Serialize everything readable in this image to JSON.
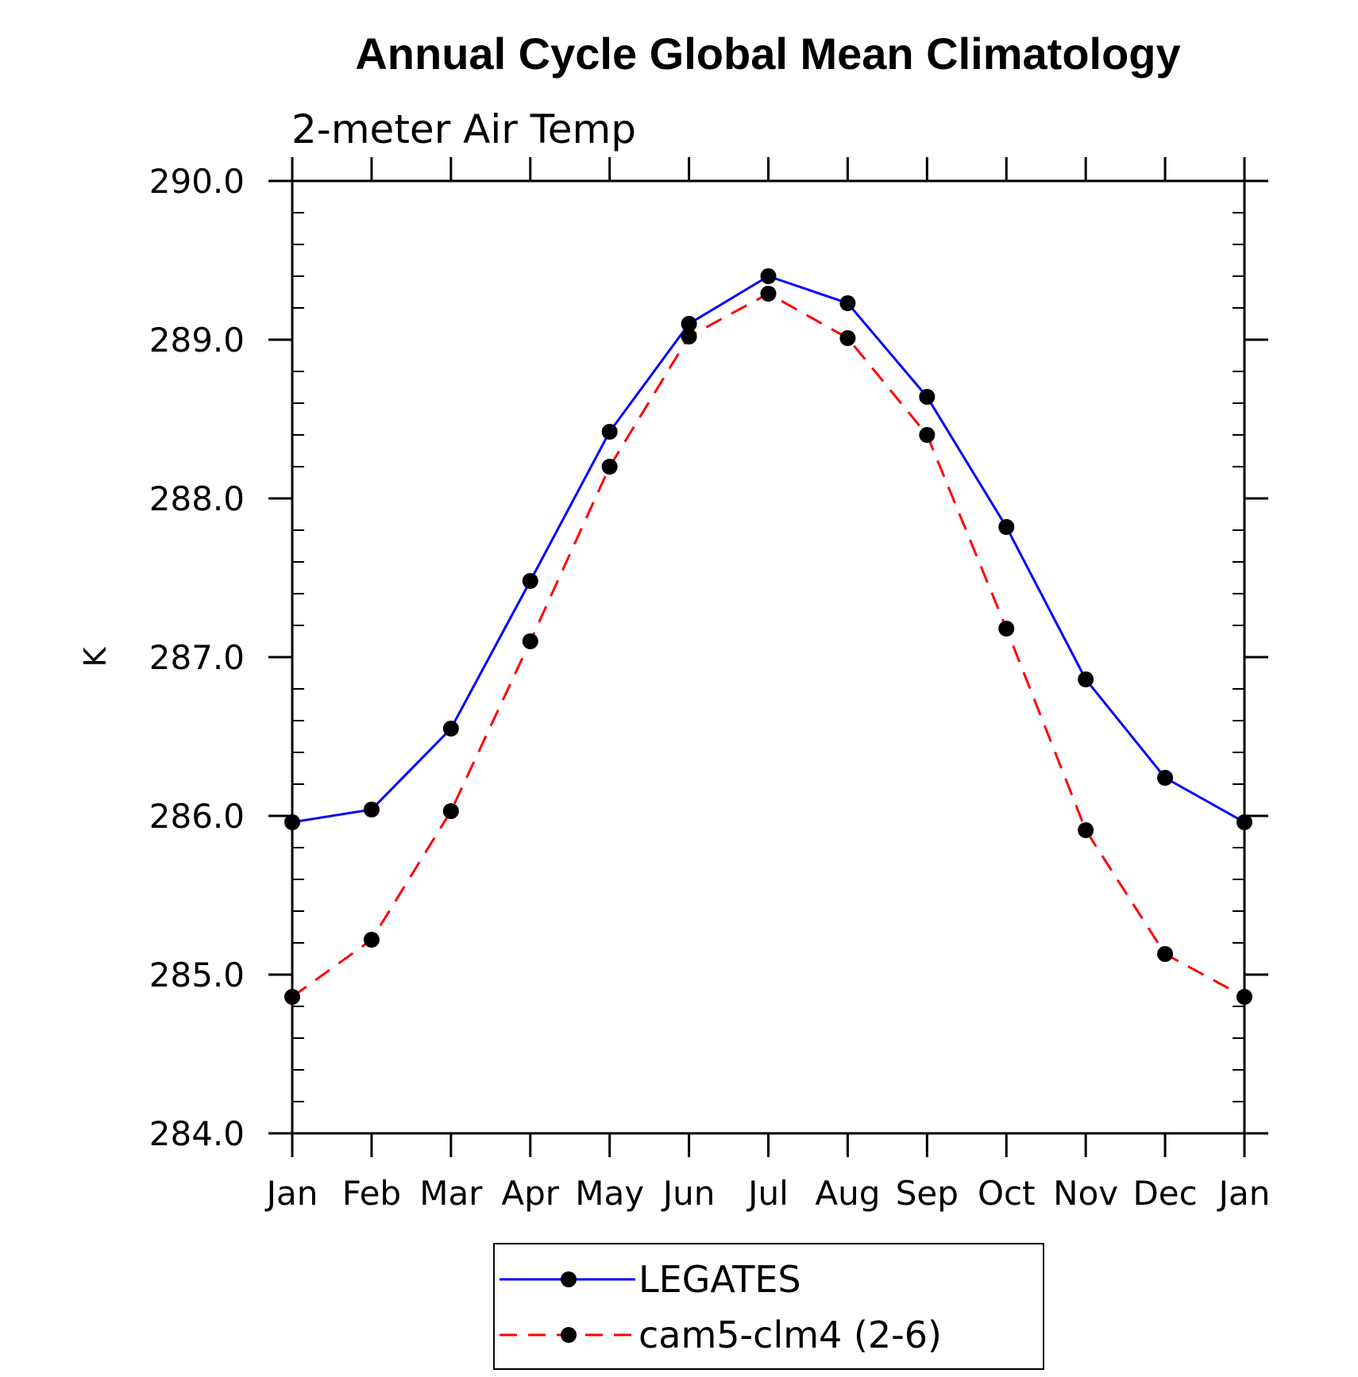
{
  "chart_data": {
    "type": "line",
    "title": "Annual Cycle Global Mean Climatology",
    "subtitle": "2-meter Air Temp",
    "xlabel": "",
    "ylabel": "K",
    "categories": [
      "Jan",
      "Feb",
      "Mar",
      "Apr",
      "May",
      "Jun",
      "Jul",
      "Aug",
      "Sep",
      "Oct",
      "Nov",
      "Dec",
      "Jan"
    ],
    "ylim": [
      284.0,
      290.0
    ],
    "yticks": [
      "284.0",
      "285.0",
      "286.0",
      "287.0",
      "288.0",
      "289.0",
      "290.0"
    ],
    "grid": false,
    "legend_position": "bottom-center",
    "series": [
      {
        "name": "LEGATES",
        "color": "#0000ff",
        "dash": "solid",
        "marker": "filled-circle",
        "values": [
          285.96,
          286.04,
          286.55,
          287.48,
          288.42,
          289.1,
          289.4,
          289.23,
          288.64,
          287.82,
          286.86,
          286.24,
          285.96
        ]
      },
      {
        "name": "cam5-clm4 (2-6)",
        "color": "#ff0000",
        "dash": "dashed",
        "marker": "filled-circle",
        "values": [
          284.86,
          285.22,
          286.03,
          287.1,
          288.2,
          289.02,
          289.29,
          289.01,
          288.4,
          287.18,
          285.91,
          285.13,
          284.86
        ]
      }
    ]
  }
}
